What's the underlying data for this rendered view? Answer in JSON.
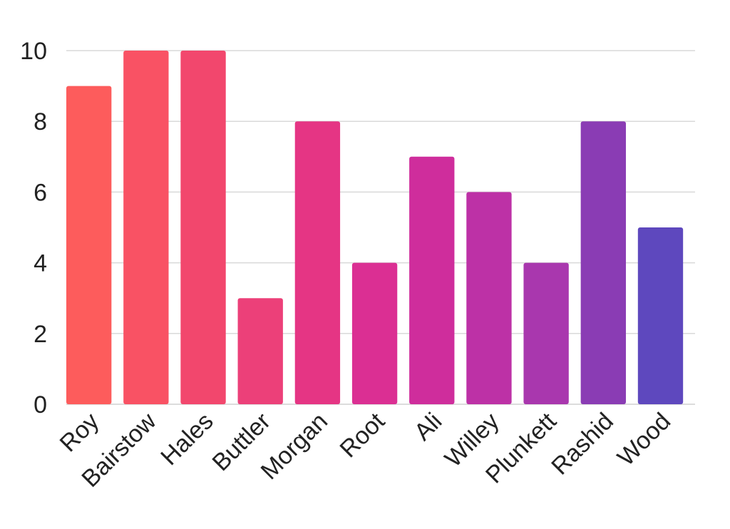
{
  "chart_data": {
    "type": "bar",
    "title": "",
    "xlabel": "",
    "ylabel": "",
    "categories": [
      "Roy",
      "Bairstow",
      "Hales",
      "Buttler",
      "Morgan",
      "Root",
      "Ali",
      "Willey",
      "Plunkett",
      "Rashid",
      "Wood"
    ],
    "values": [
      9,
      10,
      10,
      3,
      8,
      4,
      7,
      6,
      4,
      8,
      5
    ],
    "ylim": [
      0,
      10
    ],
    "yticks": [
      0,
      2,
      4,
      6,
      8,
      10
    ],
    "grid": true,
    "legend": "none",
    "colors": [
      "#fd5c5c",
      "#f95264",
      "#f2476d",
      "#ec4079",
      "#e53584",
      "#db2f93",
      "#cf2d9c",
      "#bd31a6",
      "#a937ae",
      "#8a3cb4",
      "#5e48be"
    ]
  }
}
